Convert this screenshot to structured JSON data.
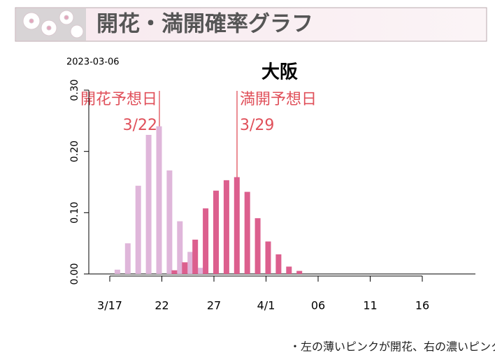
{
  "header": {
    "title": "開花・満開確率グラフ"
  },
  "chart_data": {
    "type": "bar",
    "date": "2023-03-06",
    "title": "大阪",
    "annotations": [
      {
        "label": "開花予想日",
        "date": "3/22"
      },
      {
        "label": "満開予想日",
        "date": "3/29"
      }
    ],
    "categories": [
      null,
      null,
      "3/17",
      null,
      null,
      null,
      null,
      "22",
      null,
      null,
      null,
      null,
      "27",
      null,
      null,
      null,
      null,
      "4/1",
      null,
      null,
      null,
      null,
      "06",
      null,
      null,
      null,
      null,
      "11",
      null,
      null,
      null,
      null,
      "16",
      null,
      null,
      null,
      null
    ],
    "series": [
      {
        "name": "開花",
        "color": "#dfb6da",
        "values": [
          0,
          0,
          0,
          0.007,
          0.05,
          0.144,
          0.227,
          0.241,
          0.169,
          0.086,
          0.036,
          0.01,
          0,
          0,
          0,
          0,
          0,
          0,
          0,
          0,
          0,
          0,
          0,
          0,
          0,
          0,
          0,
          0,
          0,
          0,
          0,
          0,
          0,
          0,
          0,
          0,
          0
        ]
      },
      {
        "name": "満開",
        "color": "#dc5f8e",
        "values": [
          0,
          0,
          0,
          0,
          0,
          0,
          0,
          0,
          0.006,
          0.019,
          0.056,
          0.107,
          0.136,
          0.153,
          0.158,
          0.134,
          0.091,
          0.053,
          0.032,
          0.012,
          0.005,
          0,
          0,
          0,
          0,
          0,
          0,
          0,
          0,
          0,
          0,
          0,
          0,
          0,
          0,
          0,
          0
        ]
      }
    ],
    "ylim": [
      0,
      0.3
    ],
    "yticks": [
      {
        "value": 0,
        "label": "0.00"
      },
      {
        "value": 0.1,
        "label": "0.10"
      },
      {
        "value": 0.2,
        "label": "0.20"
      },
      {
        "value": 0.3,
        "label": "0.30"
      }
    ]
  },
  "footnote": "・左の薄いピンクが開花、右の濃いピンクは満開。"
}
